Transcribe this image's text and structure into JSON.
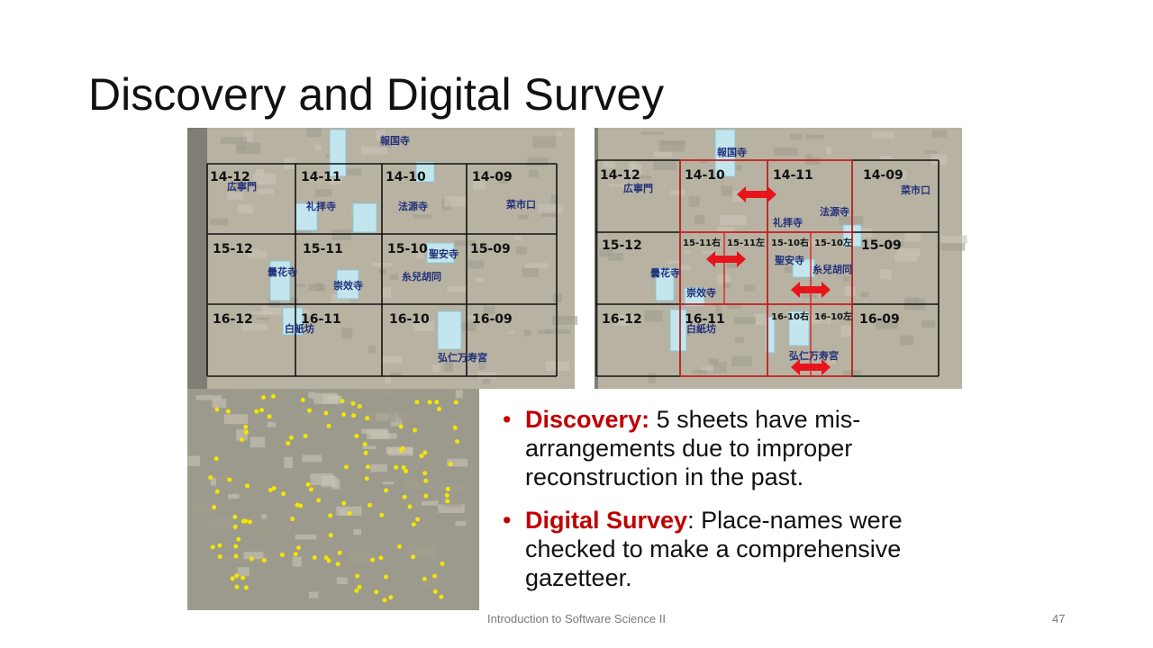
{
  "title": "Discovery and Digital Survey",
  "maps": [
    {
      "cells": [
        "14-12",
        "14-11",
        "14-10",
        "14-09",
        "15-12",
        "15-11",
        "15-10",
        "15-09",
        "16-12",
        "16-11",
        "16-10",
        "16-09"
      ],
      "places": [
        "報国寺",
        "広寧門",
        "礼拝寺",
        "法源寺",
        "菜市口",
        "聖安寺",
        "曇花寺",
        "崇效寺",
        "糸兒胡同",
        "白紙坊",
        "弘仁万寿宮"
      ]
    },
    {
      "cells": [
        "14-12",
        "14-10",
        "14-11",
        "14-09",
        "15-12",
        "15-11右",
        "15-11左",
        "15-10右",
        "15-10左",
        "15-09",
        "16-12",
        "16-11",
        "16-10右",
        "16-10左",
        "16-09"
      ],
      "places": [
        "報国寺",
        "広寧門",
        "菜市口",
        "礼拝寺",
        "法源寺",
        "聖安寺",
        "糸兒胡同",
        "曇花寺",
        "崇效寺",
        "白紙坊",
        "弘仁万寿宮"
      ]
    }
  ],
  "bullets": [
    {
      "term": "Discovery:",
      "text": " 5 sheets have mis-arrangements due to improper reconstruction in the past."
    },
    {
      "term": "Digital Survey",
      "text": ": Place-names were checked to make a comprehensive gazetteer."
    }
  ],
  "footer": "Introduction to Software Science II",
  "page_number": 47
}
